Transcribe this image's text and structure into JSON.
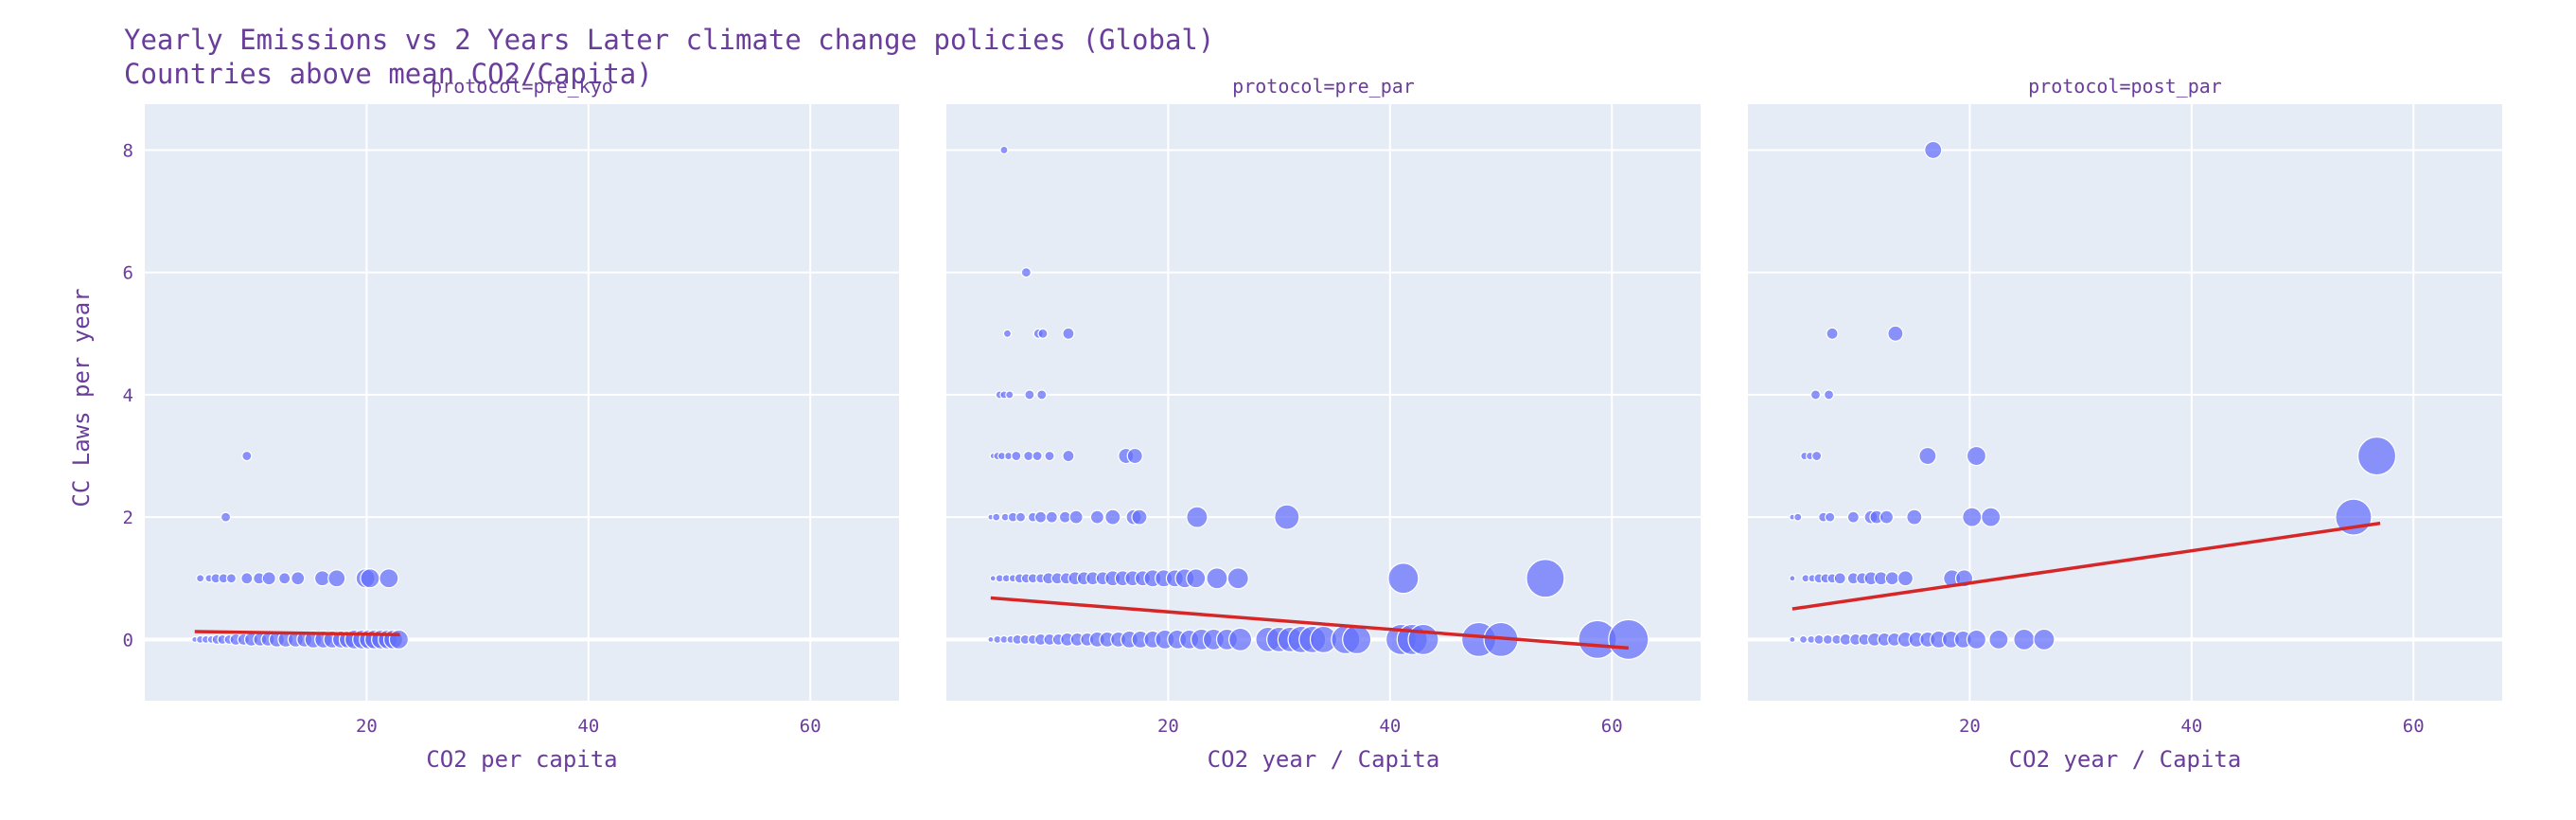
{
  "title_line1": "Yearly Emissions vs 2 Years Later climate change policies (Global)",
  "title_line2": "Countries above mean CO2/Capita)",
  "ylabel": "CC Laws per year",
  "colors": {
    "plot_bg": "#E5ECF6",
    "grid": "#ffffff",
    "marker": "#636EFA",
    "trend": "#d62728",
    "text": "#6a3d9a"
  },
  "chart_data": [
    {
      "type": "scatter",
      "title": "protocol=pre_kyo",
      "xlabel": "CO2 per capita",
      "ylabel": "CC Laws per year",
      "xlim": [
        0,
        68
      ],
      "ylim": [
        -1,
        8.75
      ],
      "xticks": [
        20,
        40,
        60
      ],
      "yticks": [
        0,
        2,
        4,
        6,
        8
      ],
      "grid": true,
      "points": [
        {
          "x": 9.2,
          "y": 3,
          "s": 5
        },
        {
          "x": 7.3,
          "y": 2,
          "s": 5
        },
        {
          "x": 5.0,
          "y": 1,
          "s": 4
        },
        {
          "x": 5.8,
          "y": 1,
          "s": 4
        },
        {
          "x": 6.4,
          "y": 1,
          "s": 5
        },
        {
          "x": 7.1,
          "y": 1,
          "s": 5
        },
        {
          "x": 7.8,
          "y": 1,
          "s": 5
        },
        {
          "x": 9.2,
          "y": 1,
          "s": 6
        },
        {
          "x": 10.3,
          "y": 1,
          "s": 6
        },
        {
          "x": 11.2,
          "y": 1,
          "s": 7
        },
        {
          "x": 12.6,
          "y": 1,
          "s": 6
        },
        {
          "x": 13.8,
          "y": 1,
          "s": 7
        },
        {
          "x": 16.0,
          "y": 1,
          "s": 8
        },
        {
          "x": 17.3,
          "y": 1,
          "s": 9
        },
        {
          "x": 19.9,
          "y": 1,
          "s": 10
        },
        {
          "x": 20.3,
          "y": 1,
          "s": 10
        },
        {
          "x": 22.0,
          "y": 1,
          "s": 10
        },
        {
          "x": 4.5,
          "y": 0,
          "s": 3
        },
        {
          "x": 5.0,
          "y": 0,
          "s": 4
        },
        {
          "x": 5.5,
          "y": 0,
          "s": 4
        },
        {
          "x": 6.0,
          "y": 0,
          "s": 4
        },
        {
          "x": 6.5,
          "y": 0,
          "s": 5
        },
        {
          "x": 7.0,
          "y": 0,
          "s": 5
        },
        {
          "x": 7.6,
          "y": 0,
          "s": 5
        },
        {
          "x": 8.2,
          "y": 0,
          "s": 6
        },
        {
          "x": 8.9,
          "y": 0,
          "s": 6
        },
        {
          "x": 9.6,
          "y": 0,
          "s": 7
        },
        {
          "x": 10.4,
          "y": 0,
          "s": 7
        },
        {
          "x": 11.1,
          "y": 0,
          "s": 7
        },
        {
          "x": 11.9,
          "y": 0,
          "s": 8
        },
        {
          "x": 12.7,
          "y": 0,
          "s": 8
        },
        {
          "x": 13.6,
          "y": 0,
          "s": 8
        },
        {
          "x": 14.4,
          "y": 0,
          "s": 8
        },
        {
          "x": 15.2,
          "y": 0,
          "s": 9
        },
        {
          "x": 16.1,
          "y": 0,
          "s": 9
        },
        {
          "x": 16.9,
          "y": 0,
          "s": 9
        },
        {
          "x": 17.7,
          "y": 0,
          "s": 9
        },
        {
          "x": 18.3,
          "y": 0,
          "s": 9
        },
        {
          "x": 18.9,
          "y": 0,
          "s": 10
        },
        {
          "x": 19.6,
          "y": 0,
          "s": 10
        },
        {
          "x": 20.2,
          "y": 0,
          "s": 10
        },
        {
          "x": 20.7,
          "y": 0,
          "s": 10
        },
        {
          "x": 21.3,
          "y": 0,
          "s": 10
        },
        {
          "x": 21.9,
          "y": 0,
          "s": 10
        },
        {
          "x": 22.4,
          "y": 0,
          "s": 10
        },
        {
          "x": 22.9,
          "y": 0,
          "s": 10
        }
      ],
      "trend": {
        "x": [
          4.5,
          23
        ],
        "y": [
          0.13,
          0.08
        ]
      }
    },
    {
      "type": "scatter",
      "title": "protocol=pre_par",
      "xlabel": "CO2 year / Capita",
      "ylabel": "",
      "xlim": [
        0,
        68
      ],
      "ylim": [
        -1,
        8.75
      ],
      "xticks": [
        20,
        40,
        60
      ],
      "yticks": [
        0,
        2,
        4,
        6,
        8
      ],
      "grid": true,
      "points": [
        {
          "x": 5.2,
          "y": 8,
          "s": 4
        },
        {
          "x": 7.2,
          "y": 6,
          "s": 5
        },
        {
          "x": 5.5,
          "y": 5,
          "s": 4
        },
        {
          "x": 8.3,
          "y": 5,
          "s": 5
        },
        {
          "x": 8.7,
          "y": 5,
          "s": 5
        },
        {
          "x": 11.0,
          "y": 5,
          "s": 6
        },
        {
          "x": 4.8,
          "y": 4,
          "s": 4
        },
        {
          "x": 5.2,
          "y": 4,
          "s": 4
        },
        {
          "x": 5.7,
          "y": 4,
          "s": 4
        },
        {
          "x": 7.5,
          "y": 4,
          "s": 5
        },
        {
          "x": 8.6,
          "y": 4,
          "s": 5
        },
        {
          "x": 4.2,
          "y": 3,
          "s": 3
        },
        {
          "x": 4.6,
          "y": 3,
          "s": 4
        },
        {
          "x": 5.0,
          "y": 3,
          "s": 4
        },
        {
          "x": 5.6,
          "y": 3,
          "s": 4
        },
        {
          "x": 6.3,
          "y": 3,
          "s": 5
        },
        {
          "x": 7.4,
          "y": 3,
          "s": 5
        },
        {
          "x": 8.2,
          "y": 3,
          "s": 5
        },
        {
          "x": 9.3,
          "y": 3,
          "s": 5
        },
        {
          "x": 11.0,
          "y": 3,
          "s": 6
        },
        {
          "x": 16.2,
          "y": 3,
          "s": 8
        },
        {
          "x": 17.0,
          "y": 3,
          "s": 8
        },
        {
          "x": 4.0,
          "y": 2,
          "s": 3
        },
        {
          "x": 4.5,
          "y": 2,
          "s": 4
        },
        {
          "x": 5.3,
          "y": 2,
          "s": 4
        },
        {
          "x": 6.0,
          "y": 2,
          "s": 5
        },
        {
          "x": 6.7,
          "y": 2,
          "s": 5
        },
        {
          "x": 7.8,
          "y": 2,
          "s": 5
        },
        {
          "x": 8.5,
          "y": 2,
          "s": 6
        },
        {
          "x": 9.5,
          "y": 2,
          "s": 6
        },
        {
          "x": 10.7,
          "y": 2,
          "s": 6
        },
        {
          "x": 11.7,
          "y": 2,
          "s": 7
        },
        {
          "x": 13.6,
          "y": 2,
          "s": 7
        },
        {
          "x": 15.0,
          "y": 2,
          "s": 8
        },
        {
          "x": 16.9,
          "y": 2,
          "s": 8
        },
        {
          "x": 17.4,
          "y": 2,
          "s": 8
        },
        {
          "x": 22.6,
          "y": 2,
          "s": 11
        },
        {
          "x": 30.7,
          "y": 2,
          "s": 13
        },
        {
          "x": 4.2,
          "y": 1,
          "s": 3
        },
        {
          "x": 4.8,
          "y": 1,
          "s": 4
        },
        {
          "x": 5.4,
          "y": 1,
          "s": 4
        },
        {
          "x": 6.0,
          "y": 1,
          "s": 4
        },
        {
          "x": 6.6,
          "y": 1,
          "s": 5
        },
        {
          "x": 7.2,
          "y": 1,
          "s": 5
        },
        {
          "x": 7.8,
          "y": 1,
          "s": 5
        },
        {
          "x": 8.5,
          "y": 1,
          "s": 5
        },
        {
          "x": 9.2,
          "y": 1,
          "s": 6
        },
        {
          "x": 10.0,
          "y": 1,
          "s": 6
        },
        {
          "x": 10.8,
          "y": 1,
          "s": 6
        },
        {
          "x": 11.6,
          "y": 1,
          "s": 7
        },
        {
          "x": 12.4,
          "y": 1,
          "s": 7
        },
        {
          "x": 13.2,
          "y": 1,
          "s": 7
        },
        {
          "x": 14.1,
          "y": 1,
          "s": 7
        },
        {
          "x": 15.0,
          "y": 1,
          "s": 8
        },
        {
          "x": 15.9,
          "y": 1,
          "s": 8
        },
        {
          "x": 16.8,
          "y": 1,
          "s": 8
        },
        {
          "x": 17.7,
          "y": 1,
          "s": 8
        },
        {
          "x": 18.6,
          "y": 1,
          "s": 9
        },
        {
          "x": 19.6,
          "y": 1,
          "s": 9
        },
        {
          "x": 20.6,
          "y": 1,
          "s": 9
        },
        {
          "x": 21.5,
          "y": 1,
          "s": 10
        },
        {
          "x": 22.5,
          "y": 1,
          "s": 10
        },
        {
          "x": 24.4,
          "y": 1,
          "s": 11
        },
        {
          "x": 26.3,
          "y": 1,
          "s": 11
        },
        {
          "x": 41.2,
          "y": 1,
          "s": 16
        },
        {
          "x": 54.0,
          "y": 1,
          "s": 20
        },
        {
          "x": 4.0,
          "y": 0,
          "s": 3
        },
        {
          "x": 4.6,
          "y": 0,
          "s": 4
        },
        {
          "x": 5.2,
          "y": 0,
          "s": 4
        },
        {
          "x": 5.8,
          "y": 0,
          "s": 4
        },
        {
          "x": 6.4,
          "y": 0,
          "s": 5
        },
        {
          "x": 7.1,
          "y": 0,
          "s": 5
        },
        {
          "x": 7.8,
          "y": 0,
          "s": 5
        },
        {
          "x": 8.5,
          "y": 0,
          "s": 6
        },
        {
          "x": 9.3,
          "y": 0,
          "s": 6
        },
        {
          "x": 10.1,
          "y": 0,
          "s": 6
        },
        {
          "x": 10.9,
          "y": 0,
          "s": 7
        },
        {
          "x": 11.8,
          "y": 0,
          "s": 7
        },
        {
          "x": 12.7,
          "y": 0,
          "s": 7
        },
        {
          "x": 13.6,
          "y": 0,
          "s": 8
        },
        {
          "x": 14.5,
          "y": 0,
          "s": 8
        },
        {
          "x": 15.5,
          "y": 0,
          "s": 8
        },
        {
          "x": 16.5,
          "y": 0,
          "s": 9
        },
        {
          "x": 17.5,
          "y": 0,
          "s": 9
        },
        {
          "x": 18.6,
          "y": 0,
          "s": 9
        },
        {
          "x": 19.7,
          "y": 0,
          "s": 10
        },
        {
          "x": 20.8,
          "y": 0,
          "s": 10
        },
        {
          "x": 21.9,
          "y": 0,
          "s": 10
        },
        {
          "x": 23.0,
          "y": 0,
          "s": 11
        },
        {
          "x": 24.1,
          "y": 0,
          "s": 11
        },
        {
          "x": 25.3,
          "y": 0,
          "s": 11
        },
        {
          "x": 26.5,
          "y": 0,
          "s": 12
        },
        {
          "x": 29.0,
          "y": 0,
          "s": 13
        },
        {
          "x": 30.0,
          "y": 0,
          "s": 13
        },
        {
          "x": 31.0,
          "y": 0,
          "s": 13
        },
        {
          "x": 32.0,
          "y": 0,
          "s": 14
        },
        {
          "x": 33.0,
          "y": 0,
          "s": 14
        },
        {
          "x": 34.0,
          "y": 0,
          "s": 14
        },
        {
          "x": 36.0,
          "y": 0,
          "s": 15
        },
        {
          "x": 37.0,
          "y": 0,
          "s": 15
        },
        {
          "x": 41.0,
          "y": 0,
          "s": 16
        },
        {
          "x": 42.0,
          "y": 0,
          "s": 16
        },
        {
          "x": 43.0,
          "y": 0,
          "s": 16
        },
        {
          "x": 48.0,
          "y": 0,
          "s": 18
        },
        {
          "x": 50.0,
          "y": 0,
          "s": 18
        },
        {
          "x": 58.7,
          "y": 0,
          "s": 20
        },
        {
          "x": 61.5,
          "y": 0,
          "s": 21
        }
      ],
      "trend": {
        "x": [
          4.0,
          61.5
        ],
        "y": [
          0.68,
          -0.14
        ]
      }
    },
    {
      "type": "scatter",
      "title": "protocol=post_par",
      "xlabel": "CO2 year / Capita",
      "ylabel": "",
      "xlim": [
        0,
        68
      ],
      "ylim": [
        -1,
        8.75
      ],
      "xticks": [
        20,
        40,
        60
      ],
      "yticks": [
        0,
        2,
        4,
        6,
        8
      ],
      "grid": true,
      "points": [
        {
          "x": 16.7,
          "y": 8,
          "s": 9
        },
        {
          "x": 7.6,
          "y": 5,
          "s": 6
        },
        {
          "x": 13.3,
          "y": 5,
          "s": 8
        },
        {
          "x": 6.1,
          "y": 4,
          "s": 5
        },
        {
          "x": 7.3,
          "y": 4,
          "s": 5
        },
        {
          "x": 5.1,
          "y": 3,
          "s": 4
        },
        {
          "x": 5.6,
          "y": 3,
          "s": 4
        },
        {
          "x": 6.2,
          "y": 3,
          "s": 5
        },
        {
          "x": 16.2,
          "y": 3,
          "s": 9
        },
        {
          "x": 20.6,
          "y": 3,
          "s": 10
        },
        {
          "x": 56.7,
          "y": 3,
          "s": 20
        },
        {
          "x": 4.0,
          "y": 2,
          "s": 3
        },
        {
          "x": 4.5,
          "y": 2,
          "s": 4
        },
        {
          "x": 6.8,
          "y": 2,
          "s": 5
        },
        {
          "x": 7.4,
          "y": 2,
          "s": 5
        },
        {
          "x": 9.5,
          "y": 2,
          "s": 6
        },
        {
          "x": 11.1,
          "y": 2,
          "s": 7
        },
        {
          "x": 11.6,
          "y": 2,
          "s": 7
        },
        {
          "x": 12.5,
          "y": 2,
          "s": 7
        },
        {
          "x": 15.0,
          "y": 2,
          "s": 8
        },
        {
          "x": 20.2,
          "y": 2,
          "s": 10
        },
        {
          "x": 21.9,
          "y": 2,
          "s": 10
        },
        {
          "x": 54.6,
          "y": 2,
          "s": 19
        },
        {
          "x": 4.0,
          "y": 1,
          "s": 3
        },
        {
          "x": 5.2,
          "y": 1,
          "s": 4
        },
        {
          "x": 5.8,
          "y": 1,
          "s": 4
        },
        {
          "x": 6.4,
          "y": 1,
          "s": 5
        },
        {
          "x": 7.0,
          "y": 1,
          "s": 5
        },
        {
          "x": 7.6,
          "y": 1,
          "s": 5
        },
        {
          "x": 8.3,
          "y": 1,
          "s": 6
        },
        {
          "x": 9.5,
          "y": 1,
          "s": 6
        },
        {
          "x": 10.3,
          "y": 1,
          "s": 6
        },
        {
          "x": 11.1,
          "y": 1,
          "s": 7
        },
        {
          "x": 12.0,
          "y": 1,
          "s": 7
        },
        {
          "x": 13.0,
          "y": 1,
          "s": 7
        },
        {
          "x": 14.2,
          "y": 1,
          "s": 8
        },
        {
          "x": 18.4,
          "y": 1,
          "s": 9
        },
        {
          "x": 19.5,
          "y": 1,
          "s": 9
        },
        {
          "x": 4.0,
          "y": 0,
          "s": 3
        },
        {
          "x": 5.0,
          "y": 0,
          "s": 4
        },
        {
          "x": 5.7,
          "y": 0,
          "s": 4
        },
        {
          "x": 6.4,
          "y": 0,
          "s": 5
        },
        {
          "x": 7.2,
          "y": 0,
          "s": 5
        },
        {
          "x": 8.0,
          "y": 0,
          "s": 5
        },
        {
          "x": 8.8,
          "y": 0,
          "s": 6
        },
        {
          "x": 9.7,
          "y": 0,
          "s": 6
        },
        {
          "x": 10.5,
          "y": 0,
          "s": 6
        },
        {
          "x": 11.4,
          "y": 0,
          "s": 7
        },
        {
          "x": 12.3,
          "y": 0,
          "s": 7
        },
        {
          "x": 13.2,
          "y": 0,
          "s": 7
        },
        {
          "x": 14.2,
          "y": 0,
          "s": 8
        },
        {
          "x": 15.2,
          "y": 0,
          "s": 8
        },
        {
          "x": 16.2,
          "y": 0,
          "s": 8
        },
        {
          "x": 17.2,
          "y": 0,
          "s": 9
        },
        {
          "x": 18.3,
          "y": 0,
          "s": 9
        },
        {
          "x": 19.4,
          "y": 0,
          "s": 9
        },
        {
          "x": 20.6,
          "y": 0,
          "s": 10
        },
        {
          "x": 22.6,
          "y": 0,
          "s": 10
        },
        {
          "x": 24.9,
          "y": 0,
          "s": 11
        },
        {
          "x": 26.7,
          "y": 0,
          "s": 11
        }
      ],
      "trend": {
        "x": [
          4.0,
          57.0
        ],
        "y": [
          0.5,
          1.9
        ]
      }
    }
  ]
}
